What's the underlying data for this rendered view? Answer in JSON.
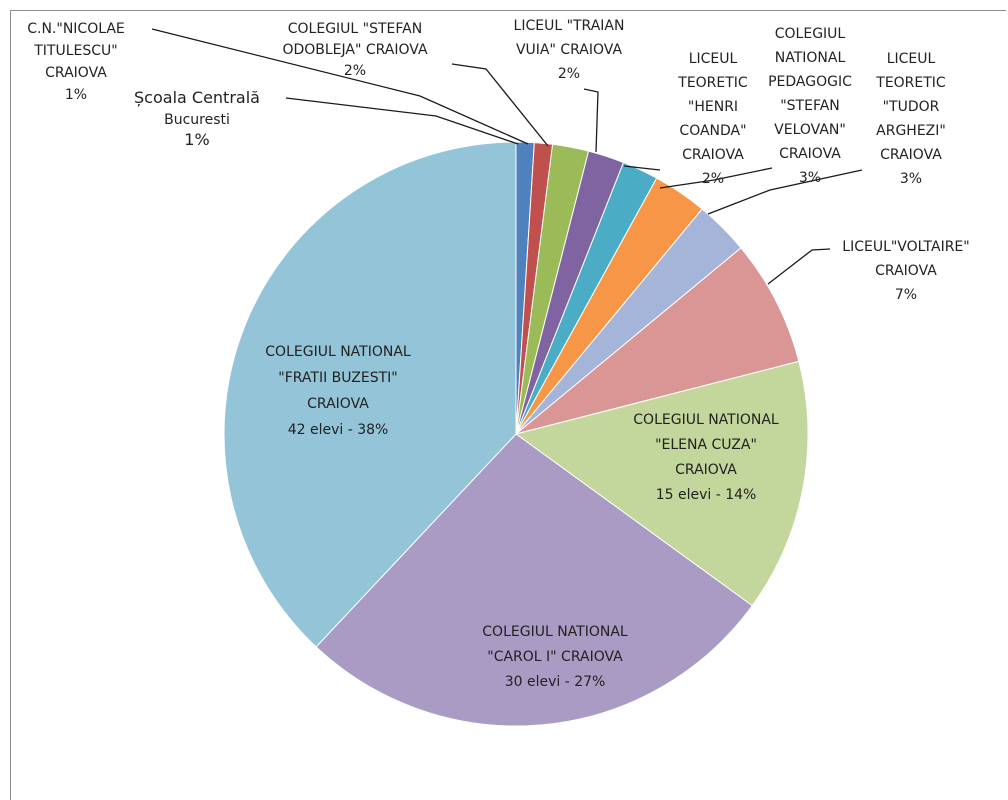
{
  "chart_data": {
    "type": "pie",
    "title": "",
    "start_angle_deg": 0,
    "direction": "clockwise",
    "legend": "none",
    "slices": [
      {
        "label_lines": [
          "Școala Centrală",
          "Bucuresti",
          "1%"
        ],
        "percent": 1,
        "elevi": null,
        "color": "#4f81bd"
      },
      {
        "label_lines": [
          "C.N.\"NICOLAE",
          "TITULESCU\"",
          "CRAIOVA",
          "1%"
        ],
        "percent": 1,
        "elevi": null,
        "color": "#c0504d"
      },
      {
        "label_lines": [
          "COLEGIUL \"STEFAN",
          "ODOBLEJA\" CRAIOVA",
          "2%"
        ],
        "percent": 2,
        "elevi": null,
        "color": "#9bbb59"
      },
      {
        "label_lines": [
          "LICEUL \"TRAIAN",
          "VUIA\" CRAIOVA",
          "2%"
        ],
        "percent": 2,
        "elevi": null,
        "color": "#8064a2"
      },
      {
        "label_lines": [
          "LICEUL",
          "TEORETIC",
          "\"HENRI",
          "COANDA\"",
          "CRAIOVA",
          "2%"
        ],
        "percent": 2,
        "elevi": null,
        "color": "#4bacc6"
      },
      {
        "label_lines": [
          "COLEGIUL",
          "NATIONAL",
          "PEDAGOGIC",
          "\"STEFAN",
          "VELOVAN\"",
          "CRAIOVA",
          "3%"
        ],
        "percent": 3,
        "elevi": null,
        "color": "#f79646"
      },
      {
        "label_lines": [
          "LICEUL",
          "TEORETIC",
          "\"TUDOR",
          "ARGHEZI\"",
          "CRAIOVA",
          "3%"
        ],
        "percent": 3,
        "elevi": null,
        "color": "#a5b5d9"
      },
      {
        "label_lines": [
          "LICEUL\"VOLTAIRE\"",
          "CRAIOVA",
          "7%"
        ],
        "percent": 7,
        "elevi": null,
        "color": "#d99694"
      },
      {
        "label_lines": [
          "COLEGIUL NATIONAL",
          "\"ELENA CUZA\"",
          "CRAIOVA",
          "15 elevi - 14%"
        ],
        "percent": 14,
        "elevi": 15,
        "color": "#c3d69b"
      },
      {
        "label_lines": [
          "COLEGIUL NATIONAL",
          "\"CAROL I\" CRAIOVA",
          "30 elevi - 27%"
        ],
        "percent": 27,
        "elevi": 30,
        "color": "#a99bc4"
      },
      {
        "label_lines": [
          "COLEGIUL NATIONAL",
          "\"FRATII BUZESTI\"",
          "CRAIOVA",
          "42 elevi - 38%"
        ],
        "percent": 38,
        "elevi": 42,
        "color": "#93c4d7"
      }
    ]
  }
}
